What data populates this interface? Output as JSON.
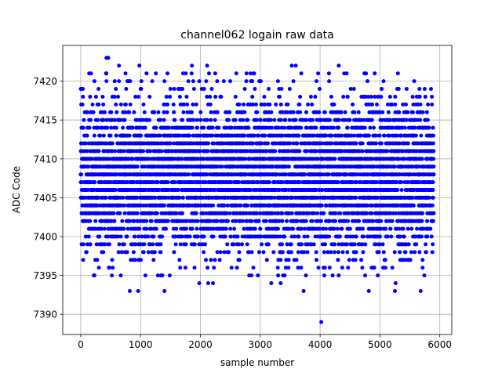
{
  "chart_data": {
    "type": "scatter",
    "title": "channel062 logain raw data",
    "xlabel": "sample number",
    "ylabel": "ADC Code",
    "xlim": [
      -300,
      6200
    ],
    "ylim": [
      7387.4,
      7424.6
    ],
    "x_ticks": [
      0,
      1000,
      2000,
      3000,
      4000,
      5000,
      6000
    ],
    "y_ticks": [
      7390,
      7395,
      7400,
      7405,
      7410,
      7415,
      7420
    ],
    "grid": true,
    "legend": "none",
    "marker": "circle",
    "color": "#0000ff",
    "n_points": 5900,
    "x_range": [
      0,
      5899
    ],
    "y_distribution": {
      "mean": 7407.5,
      "bulk_range": [
        7400,
        7415
      ],
      "codes": [
        7393,
        7394,
        7395,
        7396,
        7397,
        7398,
        7399,
        7400,
        7401,
        7402,
        7403,
        7404,
        7405,
        7406,
        7407,
        7408,
        7409,
        7410,
        7411,
        7412,
        7413,
        7414,
        7415,
        7416,
        7417,
        7418,
        7419,
        7420,
        7421,
        7422
      ],
      "relative_counts": [
        1,
        1,
        2,
        4,
        8,
        14,
        20,
        28,
        36,
        42,
        52,
        62,
        75,
        84,
        90,
        88,
        84,
        76,
        68,
        58,
        48,
        40,
        30,
        20,
        14,
        9,
        6,
        4,
        2,
        1
      ]
    },
    "outliers": [
      {
        "x": 430,
        "y": 7423
      },
      {
        "x": 460,
        "y": 7423
      },
      {
        "x": 640,
        "y": 7422
      },
      {
        "x": 980,
        "y": 7422
      },
      {
        "x": 2600,
        "y": 7421
      },
      {
        "x": 2890,
        "y": 7421
      },
      {
        "x": 4740,
        "y": 7421
      },
      {
        "x": 5300,
        "y": 7421
      },
      {
        "x": 430,
        "y": 7420
      },
      {
        "x": 640,
        "y": 7420
      },
      {
        "x": 1400,
        "y": 7420
      },
      {
        "x": 1880,
        "y": 7420
      },
      {
        "x": 2280,
        "y": 7420
      },
      {
        "x": 3940,
        "y": 7420
      },
      {
        "x": 5660,
        "y": 7419
      },
      {
        "x": 760,
        "y": 7419
      },
      {
        "x": 1700,
        "y": 7419
      },
      {
        "x": 3140,
        "y": 7419
      },
      {
        "x": 4080,
        "y": 7396
      },
      {
        "x": 4310,
        "y": 7395
      },
      {
        "x": 3380,
        "y": 7395
      },
      {
        "x": 3470,
        "y": 7396
      },
      {
        "x": 1750,
        "y": 7396
      },
      {
        "x": 2520,
        "y": 7396
      },
      {
        "x": 230,
        "y": 7395
      },
      {
        "x": 520,
        "y": 7395
      },
      {
        "x": 1290,
        "y": 7395
      },
      {
        "x": 1340,
        "y": 7395
      },
      {
        "x": 1980,
        "y": 7394
      },
      {
        "x": 2130,
        "y": 7394
      },
      {
        "x": 2210,
        "y": 7394
      },
      {
        "x": 3340,
        "y": 7394
      },
      {
        "x": 5260,
        "y": 7394
      },
      {
        "x": 5740,
        "y": 7395
      },
      {
        "x": 820,
        "y": 7393
      },
      {
        "x": 960,
        "y": 7393
      },
      {
        "x": 1400,
        "y": 7393
      },
      {
        "x": 5250,
        "y": 7393
      },
      {
        "x": 5680,
        "y": 7393
      },
      {
        "x": 2960,
        "y": 7395
      },
      {
        "x": 4020,
        "y": 7389
      }
    ]
  }
}
